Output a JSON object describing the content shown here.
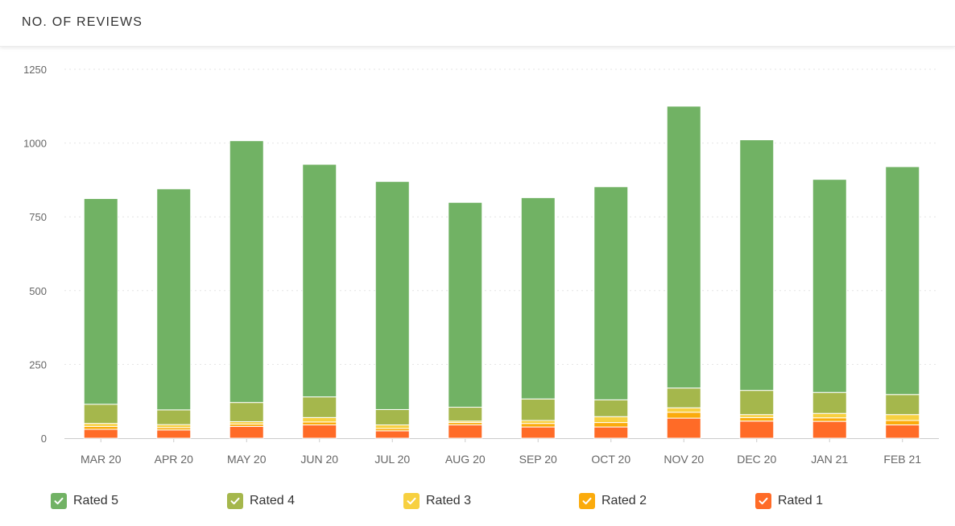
{
  "header": {
    "title": "NO. OF REVIEWS"
  },
  "chart_data": {
    "type": "bar",
    "stacked": true,
    "title": "",
    "xlabel": "",
    "ylabel": "",
    "ylim": [
      0,
      1250
    ],
    "yticks": [
      0,
      250,
      500,
      750,
      1000,
      1250
    ],
    "grid": true,
    "legend_position": "bottom",
    "categories": [
      "MAR 20",
      "APR 20",
      "MAY 20",
      "JUN 20",
      "JUL 20",
      "AUG 20",
      "SEP 20",
      "OCT 20",
      "NOV 20",
      "DEC 20",
      "JAN 21",
      "FEB 21"
    ],
    "series": [
      {
        "name": "Rated 1",
        "color": "#ff6b27",
        "values": [
          30,
          28,
          40,
          45,
          25,
          45,
          38,
          38,
          68,
          58,
          57,
          45
        ]
      },
      {
        "name": "Rated 2",
        "color": "#fbab0c",
        "values": [
          10,
          8,
          8,
          10,
          8,
          8,
          12,
          15,
          20,
          12,
          12,
          15
        ]
      },
      {
        "name": "Rated 3",
        "color": "#f7d040",
        "values": [
          10,
          10,
          8,
          15,
          12,
          5,
          10,
          20,
          15,
          10,
          15,
          20
        ]
      },
      {
        "name": "Rated 4",
        "color": "#a5b74c",
        "values": [
          65,
          50,
          65,
          70,
          52,
          47,
          73,
          57,
          67,
          82,
          71,
          68
        ]
      },
      {
        "name": "Rated 5",
        "color": "#71b264",
        "values": [
          697,
          749,
          887,
          788,
          773,
          694,
          682,
          722,
          955,
          849,
          722,
          772
        ]
      }
    ]
  },
  "legend": [
    {
      "label": "Rated 5",
      "color": "#71b264",
      "checked": true
    },
    {
      "label": "Rated 4",
      "color": "#a5b74c",
      "checked": true
    },
    {
      "label": "Rated 3",
      "color": "#f7d040",
      "checked": true
    },
    {
      "label": "Rated 2",
      "color": "#fbab0c",
      "checked": true
    },
    {
      "label": "Rated 1",
      "color": "#ff6b27",
      "checked": true
    }
  ]
}
